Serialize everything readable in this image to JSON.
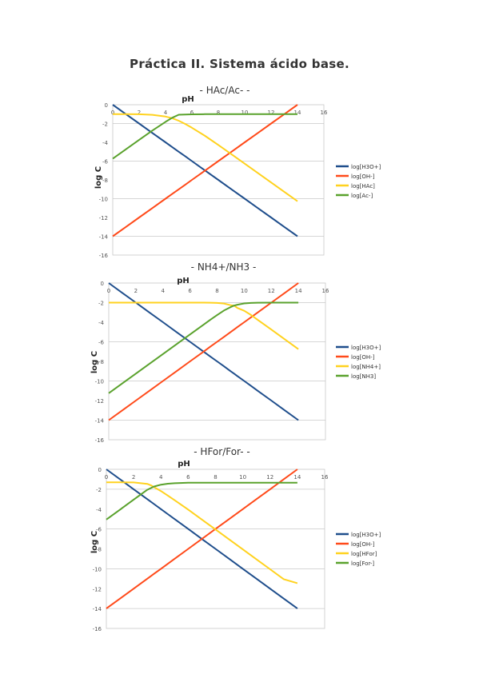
{
  "title": "Práctica II. Sistema ácido base.",
  "colors": {
    "blue": "#1f4e8c",
    "orange": "#ff4a1a",
    "yellow": "#ffd21f",
    "green": "#5aa22d",
    "grid": "#c8c8c8",
    "axis": "#9a9a9a"
  },
  "chart_data": [
    {
      "type": "line",
      "title": "- HAc/Ac- -",
      "xlabel": "pH",
      "ylabel": "log C",
      "xlim": [
        0,
        16
      ],
      "ylim": [
        -16,
        0
      ],
      "xticks": [
        "0",
        "2",
        "4",
        "6",
        "8",
        "10",
        "12",
        "14",
        "16"
      ],
      "yticks": [
        "0",
        "-2",
        "-4",
        "-6",
        "-8",
        "-10",
        "-12",
        "-14",
        "-16"
      ],
      "grid": true,
      "legend_position": "right",
      "x": [
        0,
        1,
        2,
        3,
        4,
        4.5,
        5,
        5.5,
        6,
        7,
        8,
        9,
        10,
        11,
        12,
        13,
        14
      ],
      "series": [
        {
          "name": "log[H3O+]",
          "color": "#1f4e8c",
          "values": [
            0,
            -1,
            -2,
            -3,
            -4,
            -4.5,
            -5,
            -5.5,
            -6,
            -7,
            -8,
            -9,
            -10,
            -11,
            -12,
            -13,
            -14
          ]
        },
        {
          "name": "log[OH-]",
          "color": "#ff4a1a",
          "values": [
            -14,
            -13,
            -12,
            -11,
            -10,
            -9.5,
            -9,
            -8.5,
            -8,
            -7,
            -6,
            -5,
            -4,
            -3,
            -2,
            -1,
            0
          ]
        },
        {
          "name": "log[HAc]",
          "color": "#ffd21f",
          "values": [
            -1,
            -1,
            -1.01,
            -1.07,
            -1.26,
            -1.43,
            -1.7,
            -2.05,
            -2.45,
            -3.32,
            -4.28,
            -5.27,
            -6.27,
            -7.27,
            -8.27,
            -9.27,
            -10.27
          ]
        },
        {
          "name": "log[Ac-]",
          "color": "#5aa22d",
          "values": [
            -5.74,
            -4.74,
            -3.74,
            -2.75,
            -1.82,
            -1.39,
            -1.06,
            -1.05,
            -1.02,
            -1.0,
            -1.0,
            -1.0,
            -1.0,
            -1.0,
            -1.0,
            -1.0,
            -1.0
          ]
        }
      ]
    },
    {
      "type": "line",
      "title": "- NH4+/NH3 -",
      "xlabel": "pH",
      "ylabel": "log C",
      "xlim": [
        0,
        16
      ],
      "ylim": [
        -16,
        0
      ],
      "xticks": [
        "0",
        "2",
        "4",
        "6",
        "8",
        "10",
        "12",
        "14",
        "16"
      ],
      "yticks": [
        "0",
        "-2",
        "-4",
        "-6",
        "-8",
        "-10",
        "-12",
        "-14",
        "-16"
      ],
      "grid": true,
      "legend_position": "right",
      "x": [
        0,
        1,
        2,
        3,
        4,
        5,
        6,
        7,
        7.5,
        8,
        8.5,
        9,
        9.25,
        9.5,
        10,
        10.5,
        11,
        12,
        13,
        14
      ],
      "series": [
        {
          "name": "log[H3O+]",
          "color": "#1f4e8c",
          "values": [
            0,
            -1,
            -2,
            -3,
            -4,
            -5,
            -6,
            -7,
            -7.5,
            -8,
            -8.5,
            -9,
            -9.25,
            -9.5,
            -10,
            -10.5,
            -11,
            -12,
            -13,
            -14
          ]
        },
        {
          "name": "log[OH-]",
          "color": "#ff4a1a",
          "values": [
            -14,
            -13,
            -12,
            -11,
            -10,
            -9,
            -8,
            -7,
            -6.5,
            -6,
            -5.5,
            -5,
            -4.75,
            -4.5,
            -4,
            -3.5,
            -3,
            -2,
            -1,
            0
          ]
        },
        {
          "name": "log[NH4+]",
          "color": "#ffd21f",
          "values": [
            -2,
            -2,
            -2,
            -2,
            -2,
            -2,
            -2,
            -2,
            -2.01,
            -2.03,
            -2.09,
            -2.26,
            -2.3,
            -2.55,
            -2.83,
            -3.26,
            -3.76,
            -4.75,
            -5.75,
            -6.75
          ]
        },
        {
          "name": "log[NH3]",
          "color": "#5aa22d",
          "values": [
            -11.25,
            -10.25,
            -9.25,
            -8.25,
            -7.25,
            -6.25,
            -5.25,
            -4.25,
            -3.75,
            -3.27,
            -2.81,
            -2.46,
            -2.3,
            -2.21,
            -2.08,
            -2.03,
            -2.01,
            -2.0,
            -2.0,
            -2.0
          ]
        }
      ]
    },
    {
      "type": "line",
      "title": "- HFor/For- -",
      "xlabel": "pH",
      "ylabel": "log C",
      "xlim": [
        0,
        16
      ],
      "ylim": [
        -16,
        0
      ],
      "xticks": [
        "0",
        "2",
        "4",
        "6",
        "8",
        "10",
        "12",
        "14",
        "16"
      ],
      "yticks": [
        "0",
        "-2",
        "-4",
        "-6",
        "-8",
        "-10",
        "-12",
        "-14",
        "-16"
      ],
      "grid": true,
      "legend_position": "right",
      "x": [
        0,
        1,
        2,
        3,
        3.25,
        3.5,
        4,
        4.5,
        5,
        6,
        7,
        8,
        9,
        10,
        11,
        12,
        13,
        14
      ],
      "series": [
        {
          "name": "log[H3O+]",
          "color": "#1f4e8c",
          "values": [
            0,
            -1,
            -2,
            -3,
            -3.25,
            -3.5,
            -4,
            -4.5,
            -5,
            -6,
            -7,
            -8,
            -9,
            -10,
            -11,
            -12,
            -13,
            -14
          ]
        },
        {
          "name": "log[OH-]",
          "color": "#ff4a1a",
          "values": [
            -14,
            -13,
            -12,
            -11,
            -10.75,
            -10.5,
            -10,
            -9.5,
            -9,
            -8,
            -7,
            -6,
            -5,
            -4,
            -3,
            -2,
            -1,
            0
          ]
        },
        {
          "name": "log[HFor]",
          "color": "#ffd21f",
          "values": [
            -1.3,
            -1.3,
            -1.32,
            -1.46,
            -1.6,
            -1.79,
            -2.19,
            -2.64,
            -3.1,
            -4.05,
            -5.05,
            -6.05,
            -7.05,
            -8.05,
            -9.05,
            -10.05,
            -11.05,
            -11.45
          ]
        },
        {
          "name": "log[For-]",
          "color": "#5aa22d",
          "values": [
            -5.05,
            -4.05,
            -3.05,
            -2.06,
            -1.89,
            -1.73,
            -1.54,
            -1.45,
            -1.4,
            -1.35,
            -1.35,
            -1.35,
            -1.35,
            -1.35,
            -1.35,
            -1.35,
            -1.35,
            -1.35
          ]
        }
      ]
    }
  ]
}
